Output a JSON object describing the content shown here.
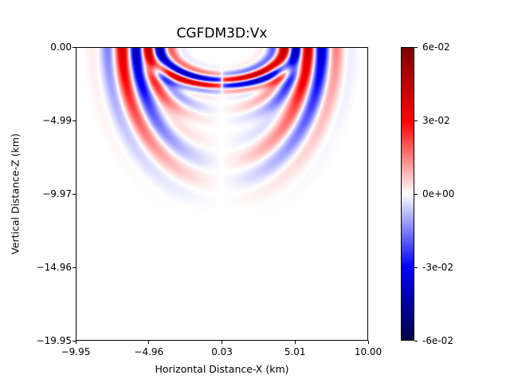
{
  "chart_data": {
    "type": "heatmap",
    "title": "CGFDM3D:Vx",
    "xlabel": "Horizontal Distance-X (km)",
    "ylabel": "Vertical Distance-Z (km)",
    "xlim": [
      -9.95,
      10.0
    ],
    "ylim": [
      -19.95,
      0.0
    ],
    "xticks": [
      -9.95,
      -4.96,
      0.03,
      5.01,
      10.0
    ],
    "xtick_labels": [
      "−9.95",
      "−4.96",
      "0.03",
      "5.01",
      "10.00"
    ],
    "yticks": [
      0.0,
      -4.99,
      -9.97,
      -14.96,
      -19.95
    ],
    "ytick_labels": [
      "0.00",
      "−4.99",
      "−9.97",
      "−14.96",
      "−19.95"
    ],
    "colormap": "seismic",
    "vmin": -0.06,
    "vmax": 0.06,
    "colorbar_ticks": [
      0.06,
      0.03,
      0,
      -0.03,
      -0.06
    ],
    "colorbar_tick_labels": [
      "6e-02",
      "3e-02",
      "0e+00",
      "-3e-02",
      "-6e-02"
    ],
    "grid": false,
    "source_x": 0.03
  }
}
